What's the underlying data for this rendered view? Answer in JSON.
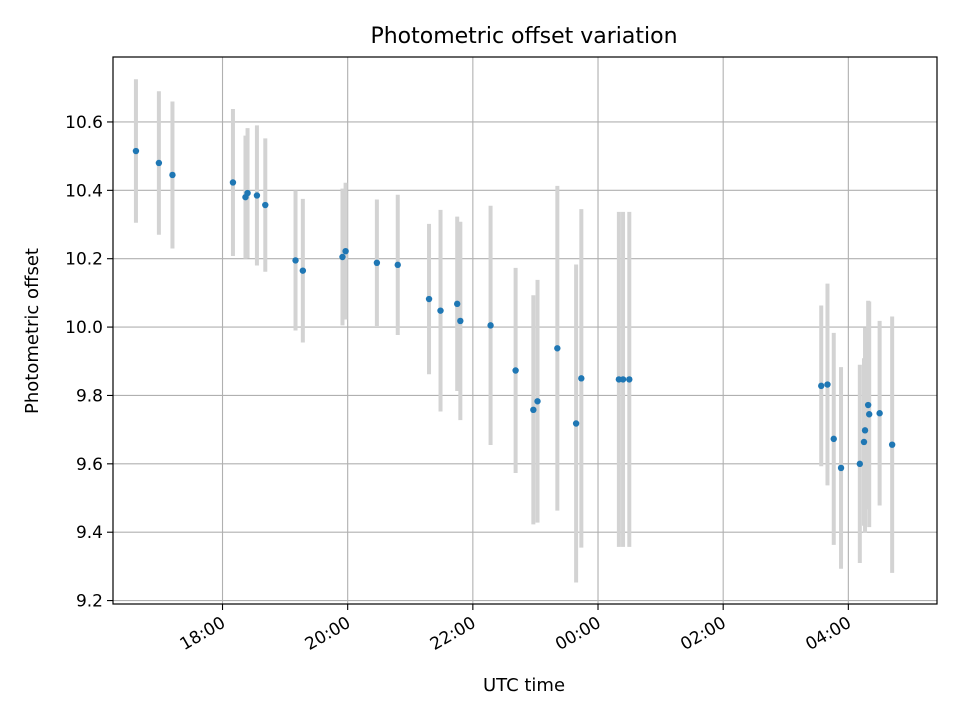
{
  "chart_data": {
    "type": "scatter",
    "title": "Photometric offset variation",
    "xlabel": "UTC time",
    "ylabel": "Photometric offset",
    "x_type": "time",
    "xlim": [
      "16:15",
      "05:25"
    ],
    "ylim": [
      9.19,
      10.79
    ],
    "x_ticks": [
      "18:00",
      "20:00",
      "22:00",
      "00:00",
      "02:00",
      "04:00"
    ],
    "y_ticks": [
      "9.2",
      "9.4",
      "9.6",
      "9.8",
      "10.0",
      "10.2",
      "10.4",
      "10.6"
    ],
    "grid": true,
    "colors": {
      "points": "#1f77b4",
      "error_bars": "#d3d3d3",
      "grid": "#b0b0b0"
    },
    "points": [
      {
        "x": "16:37",
        "y": 10.515,
        "err": 0.21
      },
      {
        "x": "16:59",
        "y": 10.48,
        "err": 0.21
      },
      {
        "x": "17:12",
        "y": 10.445,
        "err": 0.215
      },
      {
        "x": "18:10",
        "y": 10.423,
        "err": 0.215
      },
      {
        "x": "18:22",
        "y": 10.38,
        "err": 0.18
      },
      {
        "x": "18:24",
        "y": 10.392,
        "err": 0.19
      },
      {
        "x": "18:33",
        "y": 10.385,
        "err": 0.205
      },
      {
        "x": "18:41",
        "y": 10.357,
        "err": 0.195
      },
      {
        "x": "19:10",
        "y": 10.195,
        "err": 0.205
      },
      {
        "x": "19:17",
        "y": 10.165,
        "err": 0.21
      },
      {
        "x": "19:55",
        "y": 10.205,
        "err": 0.2
      },
      {
        "x": "19:58",
        "y": 10.222,
        "err": 0.2
      },
      {
        "x": "20:28",
        "y": 10.188,
        "err": 0.185
      },
      {
        "x": "20:48",
        "y": 10.182,
        "err": 0.205
      },
      {
        "x": "21:18",
        "y": 10.082,
        "err": 0.22
      },
      {
        "x": "21:29",
        "y": 10.048,
        "err": 0.295
      },
      {
        "x": "21:45",
        "y": 10.068,
        "err": 0.255
      },
      {
        "x": "21:48",
        "y": 10.018,
        "err": 0.29
      },
      {
        "x": "22:17",
        "y": 10.005,
        "err": 0.35
      },
      {
        "x": "22:41",
        "y": 9.873,
        "err": 0.3
      },
      {
        "x": "22:58",
        "y": 9.758,
        "err": 0.335
      },
      {
        "x": "23:02",
        "y": 9.783,
        "err": 0.355
      },
      {
        "x": "23:21",
        "y": 9.938,
        "err": 0.475
      },
      {
        "x": "23:39",
        "y": 9.718,
        "err": 0.465
      },
      {
        "x": "23:44",
        "y": 9.85,
        "err": 0.495
      },
      {
        "x": "00:20",
        "y": 9.847,
        "err": 0.49
      },
      {
        "x": "00:24",
        "y": 9.847,
        "err": 0.49
      },
      {
        "x": "00:30",
        "y": 9.847,
        "err": 0.49
      },
      {
        "x": "03:34",
        "y": 9.828,
        "err": 0.235
      },
      {
        "x": "03:40",
        "y": 9.832,
        "err": 0.295
      },
      {
        "x": "03:46",
        "y": 9.673,
        "err": 0.31
      },
      {
        "x": "03:53",
        "y": 9.588,
        "err": 0.295
      },
      {
        "x": "04:11",
        "y": 9.6,
        "err": 0.29
      },
      {
        "x": "04:15",
        "y": 9.664,
        "err": 0.245
      },
      {
        "x": "04:16",
        "y": 9.698,
        "err": 0.3
      },
      {
        "x": "04:19",
        "y": 9.772,
        "err": 0.305
      },
      {
        "x": "04:20",
        "y": 9.745,
        "err": 0.33
      },
      {
        "x": "04:30",
        "y": 9.748,
        "err": 0.27
      },
      {
        "x": "04:42",
        "y": 9.656,
        "err": 0.375
      }
    ]
  }
}
